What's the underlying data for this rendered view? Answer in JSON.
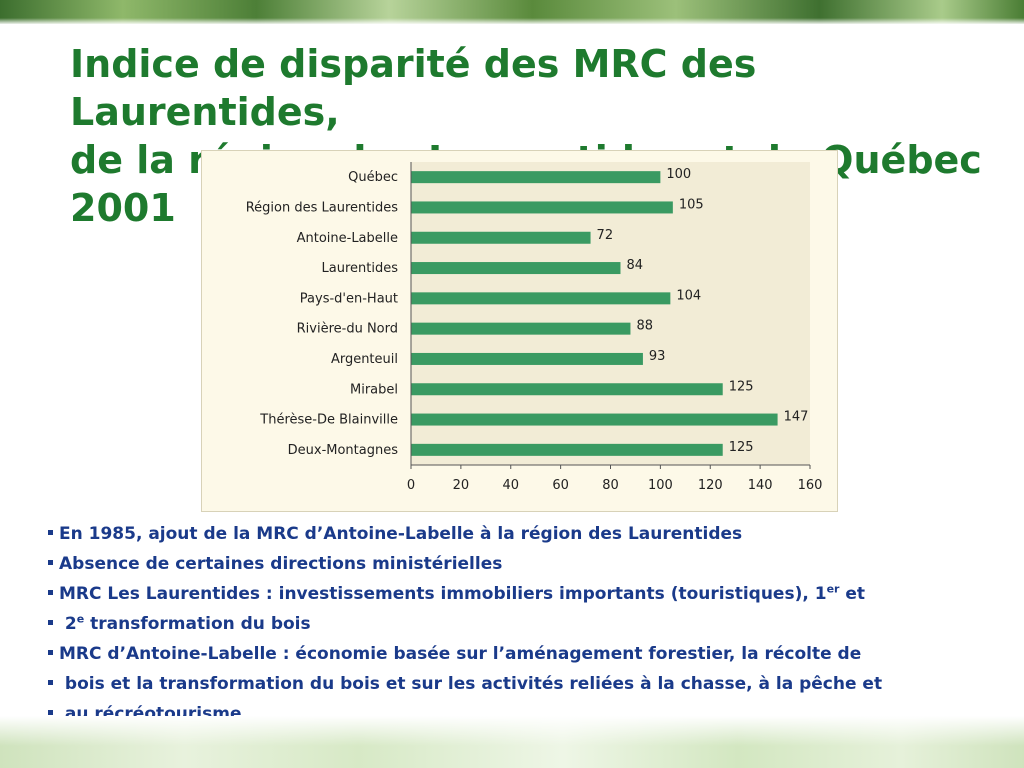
{
  "title": {
    "line1": "Indice de disparité des MRC des Laurentides,",
    "line2": "de la région des Laurentides et du Québec",
    "line3": "2001"
  },
  "colors": {
    "title": "#1e7a2e",
    "bar": "#3a9a62",
    "bullet_text": "#1a3a8a",
    "plot_bg": "#f2ecd6"
  },
  "chart_data": {
    "type": "bar",
    "orientation": "horizontal",
    "categories": [
      "Québec",
      "Région des Laurentides",
      "Antoine-Labelle",
      "Laurentides",
      "Pays-d'en-Haut",
      "Rivière-du Nord",
      "Argenteuil",
      "Mirabel",
      "Thérèse-De Blainville",
      "Deux-Montagnes"
    ],
    "values": [
      100,
      105,
      72,
      84,
      104,
      88,
      93,
      125,
      147,
      125
    ],
    "data_labels": [
      "100",
      "105",
      "72",
      "84",
      "104",
      "88",
      "93",
      "125",
      "147",
      "125"
    ],
    "xlim": [
      0,
      160
    ],
    "xticks": [
      "0",
      "20",
      "40",
      "60",
      "80",
      "100",
      "120",
      "140",
      "160"
    ],
    "grid": false,
    "legend": "none"
  },
  "bullets": {
    "b1": "En 1985, ajout de la MRC d’Antoine-Labelle à la région des Laurentides",
    "b2": "Absence de certaines directions ministérielles",
    "b3_pre": "MRC Les Laurentides : investissements immobiliers importants (touristiques), 1",
    "b3_sup": "er",
    "b3_post": " et",
    "b4_pre": " 2",
    "b4_sup": "e",
    "b4_post": " transformation du bois",
    "b5": "MRC d’Antoine-Labelle : économie basée sur l’aménagement forestier, la récolte de",
    "b6": " bois et la transformation du bois et sur les activités reliées à la chasse, à la pêche et",
    "b7": " au récréotourisme"
  }
}
